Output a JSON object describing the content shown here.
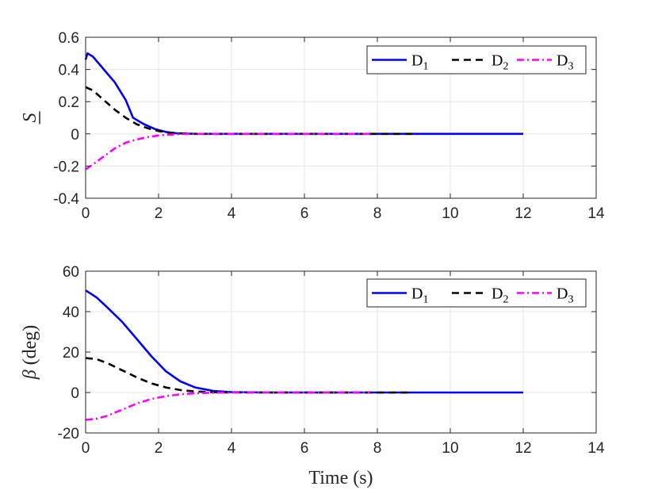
{
  "chart_data": [
    {
      "type": "line",
      "xlabel": "",
      "ylabel": "S",
      "xlim": [
        0,
        14
      ],
      "ylim": [
        -0.4,
        0.6
      ],
      "xticks": [
        0,
        2,
        4,
        6,
        8,
        10,
        12,
        14
      ],
      "yticks": [
        -0.4,
        -0.2,
        0,
        0.2,
        0.4,
        0.6
      ],
      "ytick_labels": [
        "-0.4",
        "-0.2",
        "0",
        "0.2",
        "0.4",
        "0.6"
      ],
      "grid": true,
      "legend_position": "top-right",
      "series": [
        {
          "name": "D1",
          "color": "#0000ff",
          "style": "solid",
          "x": [
            0,
            0.05,
            0.2,
            0.5,
            0.8,
            1.1,
            1.3,
            1.6,
            1.9,
            2.2,
            2.5,
            3.0,
            4,
            6,
            8,
            10,
            12
          ],
          "y": [
            0.46,
            0.5,
            0.48,
            0.4,
            0.32,
            0.21,
            0.1,
            0.06,
            0.03,
            0.012,
            0.003,
            0,
            0,
            0,
            0,
            0,
            0
          ]
        },
        {
          "name": "D2",
          "color": "#000000",
          "style": "dashed",
          "x": [
            0,
            0.2,
            0.5,
            0.8,
            1.1,
            1.4,
            1.7,
            2.0,
            2.3,
            2.7,
            3.0,
            4,
            6,
            8,
            9.1
          ],
          "y": [
            0.29,
            0.27,
            0.21,
            0.15,
            0.1,
            0.06,
            0.035,
            0.017,
            0.007,
            0.002,
            0,
            0,
            0,
            0,
            0
          ]
        },
        {
          "name": "D3",
          "color": "#ff00ff",
          "style": "dashdot",
          "x": [
            0,
            0.2,
            0.5,
            0.8,
            1.1,
            1.4,
            1.7,
            2.0,
            2.3,
            2.7,
            3.0,
            4,
            6,
            7.8
          ],
          "y": [
            -0.22,
            -0.19,
            -0.14,
            -0.09,
            -0.055,
            -0.035,
            -0.02,
            -0.01,
            -0.005,
            -0.001,
            0,
            0,
            0,
            0
          ]
        }
      ]
    },
    {
      "type": "line",
      "xlabel": "Time (s)",
      "ylabel": "β (deg)",
      "xlim": [
        0,
        14
      ],
      "ylim": [
        -20,
        60
      ],
      "xticks": [
        0,
        2,
        4,
        6,
        8,
        10,
        12,
        14
      ],
      "yticks": [
        -20,
        0,
        20,
        40,
        60
      ],
      "ytick_labels": [
        "-20",
        "0",
        "20",
        "40",
        "60"
      ],
      "grid": true,
      "legend_position": "top-right",
      "series": [
        {
          "name": "D1",
          "color": "#0000ff",
          "style": "solid",
          "x": [
            0,
            0.3,
            0.6,
            1.0,
            1.4,
            1.8,
            2.2,
            2.6,
            3.0,
            3.5,
            4.0,
            5,
            6,
            8,
            10,
            12
          ],
          "y": [
            50.5,
            47,
            42,
            35,
            26.5,
            18,
            10.5,
            5.5,
            2.5,
            0.8,
            0.2,
            0,
            0,
            0,
            0,
            0
          ]
        },
        {
          "name": "D2",
          "color": "#000000",
          "style": "dashed",
          "x": [
            0,
            0.3,
            0.6,
            1.0,
            1.4,
            1.8,
            2.2,
            2.6,
            3.0,
            3.5,
            4.0,
            5,
            6,
            8,
            8.9
          ],
          "y": [
            17,
            16.5,
            14.5,
            11,
            7.5,
            4.5,
            2.5,
            1.2,
            0.5,
            0.15,
            0,
            0,
            0,
            0,
            0
          ]
        },
        {
          "name": "D3",
          "color": "#ff00ff",
          "style": "dashdot",
          "x": [
            0,
            0.3,
            0.6,
            1.0,
            1.4,
            1.8,
            2.2,
            2.6,
            3.0,
            3.5,
            4.0,
            5,
            6,
            7.8
          ],
          "y": [
            -13.5,
            -13,
            -11.5,
            -8.5,
            -5.5,
            -3.2,
            -1.8,
            -0.9,
            -0.4,
            -0.1,
            0,
            0,
            0,
            0
          ]
        }
      ]
    }
  ]
}
